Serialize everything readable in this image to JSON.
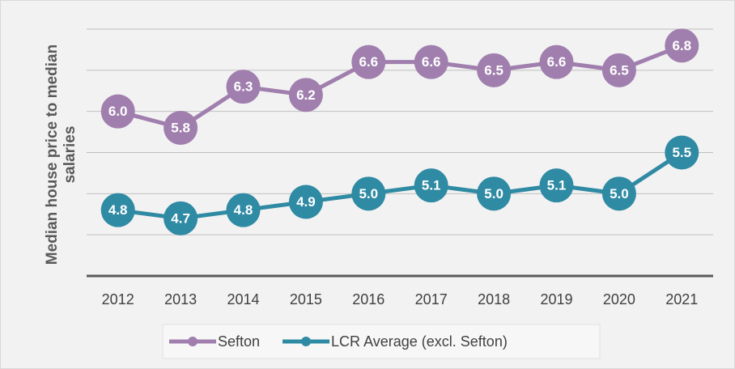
{
  "chart_data": {
    "type": "line",
    "y_label": "Median house price to median salaries",
    "categories": [
      "2012",
      "2013",
      "2014",
      "2015",
      "2016",
      "2017",
      "2018",
      "2019",
      "2020",
      "2021"
    ],
    "series": [
      {
        "name": "Sefton",
        "color": "#a07fae",
        "values": [
          6.0,
          5.8,
          6.3,
          6.2,
          6.6,
          6.6,
          6.5,
          6.6,
          6.5,
          6.8
        ],
        "value_labels": [
          "6.0",
          "5.8",
          "6.3",
          "6.2",
          "6.6",
          "6.6",
          "6.5",
          "6.6",
          "6.5",
          "6.8"
        ]
      },
      {
        "name": "LCR Average (excl. Sefton)",
        "color": "#2f8aa3",
        "values": [
          4.8,
          4.7,
          4.8,
          4.9,
          5.0,
          5.1,
          5.0,
          5.1,
          5.0,
          5.5
        ],
        "value_labels": [
          "4.8",
          "4.7",
          "4.8",
          "4.9",
          "5.0",
          "5.1",
          "5.0",
          "5.1",
          "5.0",
          "5.5"
        ]
      }
    ],
    "ylim": [
      4,
      7
    ],
    "yticks": [
      4,
      4.5,
      5,
      5.5,
      6,
      6.5,
      7
    ],
    "grid": true,
    "legend": "bottom"
  }
}
